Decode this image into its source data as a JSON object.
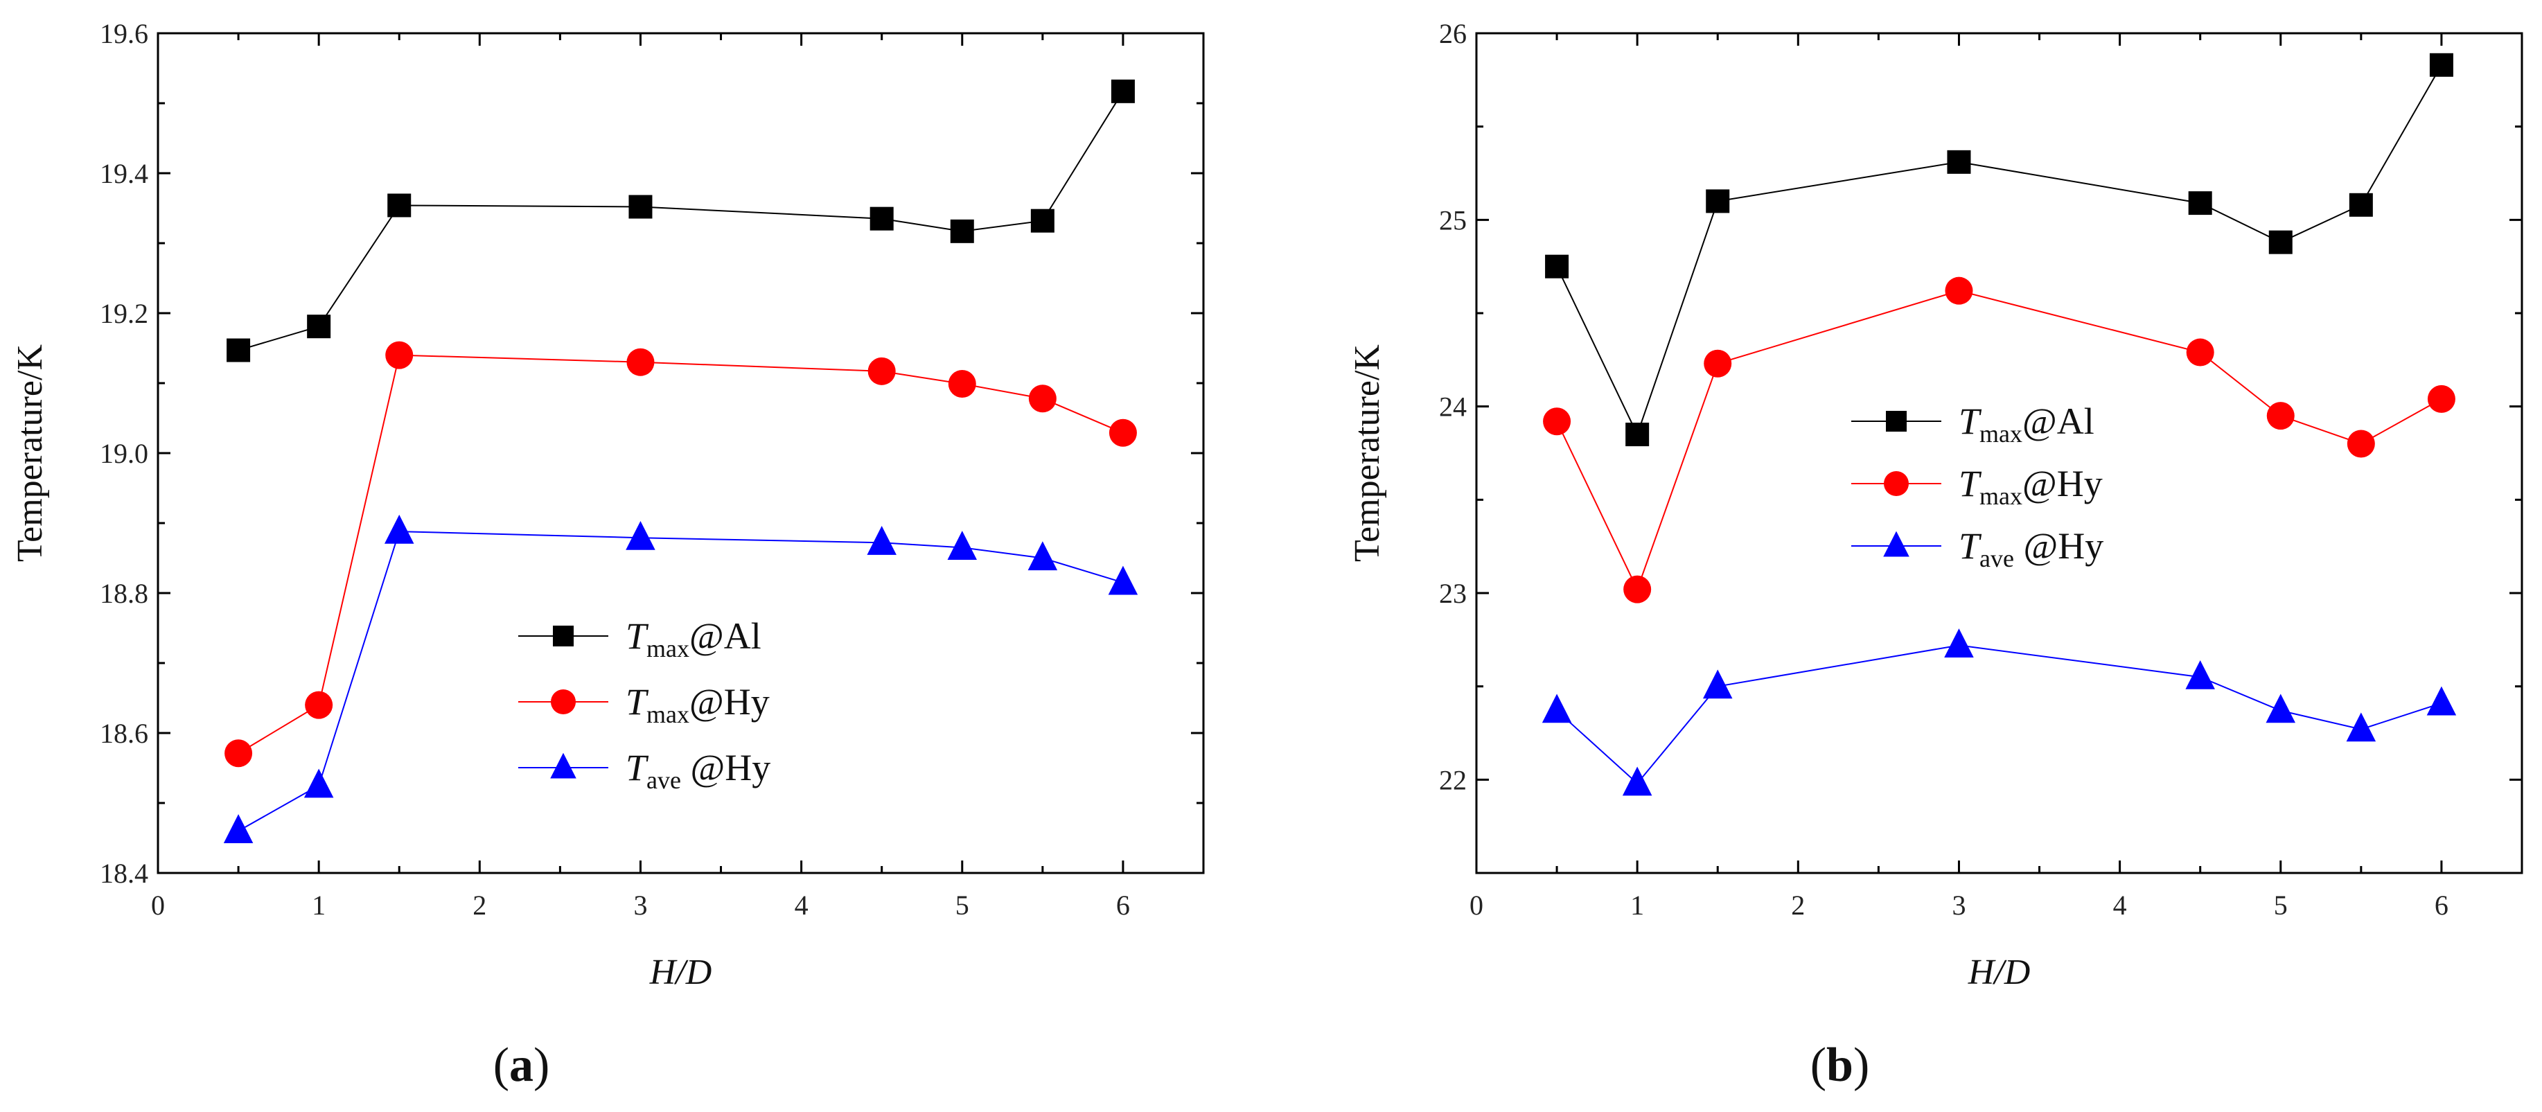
{
  "chart_data": [
    {
      "type": "line",
      "panel_label": "a",
      "xlabel": "H/D",
      "ylabel": "Temperature/K",
      "xlim": [
        0,
        6.5
      ],
      "ylim": [
        18.4,
        19.6
      ],
      "xticks": [
        0,
        1,
        2,
        3,
        4,
        5,
        6
      ],
      "yticks": [
        18.4,
        18.6,
        18.8,
        19.0,
        19.2,
        19.4,
        19.6
      ],
      "ytick_labels": [
        "18.4",
        "18.6",
        "18.8",
        "19.0",
        "19.2",
        "19.4",
        "19.6"
      ],
      "legend_placement": "center",
      "x": [
        0.5,
        1,
        1.5,
        3,
        4.5,
        5,
        5.5,
        6
      ],
      "series": [
        {
          "name": "Tmax@Al",
          "label_main": "T",
          "label_sub": "max",
          "label_rest": "@Al",
          "color": "#000000",
          "marker": "square",
          "values": [
            19.147,
            19.181,
            19.354,
            19.352,
            19.335,
            19.317,
            19.332,
            19.517
          ]
        },
        {
          "name": "Tmax@Hy",
          "label_main": "T",
          "label_sub": "max",
          "label_rest": "@Hy",
          "color": "#ff0000",
          "marker": "circle",
          "values": [
            18.571,
            18.64,
            19.14,
            19.13,
            19.117,
            19.099,
            19.078,
            19.029
          ]
        },
        {
          "name": "Tave@Hy",
          "label_main": "T",
          "label_sub": "ave",
          "label_rest": " @Hy",
          "color": "#0000ff",
          "marker": "triangle",
          "values": [
            18.46,
            18.525,
            18.888,
            18.879,
            18.872,
            18.865,
            18.85,
            18.815
          ]
        }
      ]
    },
    {
      "type": "line",
      "panel_label": "b",
      "xlabel": "H/D",
      "ylabel": "Temperature/K",
      "xlim": [
        0,
        6.5
      ],
      "ylim": [
        21.5,
        26
      ],
      "xticks": [
        0,
        1,
        2,
        3,
        4,
        5,
        6
      ],
      "yticks": [
        22,
        23,
        24,
        25,
        26
      ],
      "ytick_labels": [
        "22",
        "23",
        "24",
        "25",
        "26"
      ],
      "legend_placement": "center-left",
      "x": [
        0.5,
        1,
        1.5,
        3,
        4.5,
        5,
        5.5,
        6
      ],
      "series": [
        {
          "name": "Tmax@Al",
          "label_main": "T",
          "label_sub": "max",
          "label_rest": "@Al",
          "color": "#000000",
          "marker": "square",
          "values": [
            24.75,
            23.85,
            25.1,
            25.31,
            25.09,
            24.88,
            25.08,
            25.83
          ]
        },
        {
          "name": "Tmax@Hy",
          "label_main": "T",
          "label_sub": "max",
          "label_rest": "@Hy",
          "color": "#ff0000",
          "marker": "circle",
          "values": [
            23.92,
            23.02,
            24.23,
            24.62,
            24.29,
            23.95,
            23.8,
            24.04
          ]
        },
        {
          "name": "Tave@Hy",
          "label_main": "T",
          "label_sub": "ave",
          "label_rest": " @Hy",
          "color": "#0000ff",
          "marker": "triangle",
          "values": [
            22.37,
            21.98,
            22.5,
            22.72,
            22.55,
            22.37,
            22.27,
            22.41
          ]
        }
      ]
    }
  ]
}
